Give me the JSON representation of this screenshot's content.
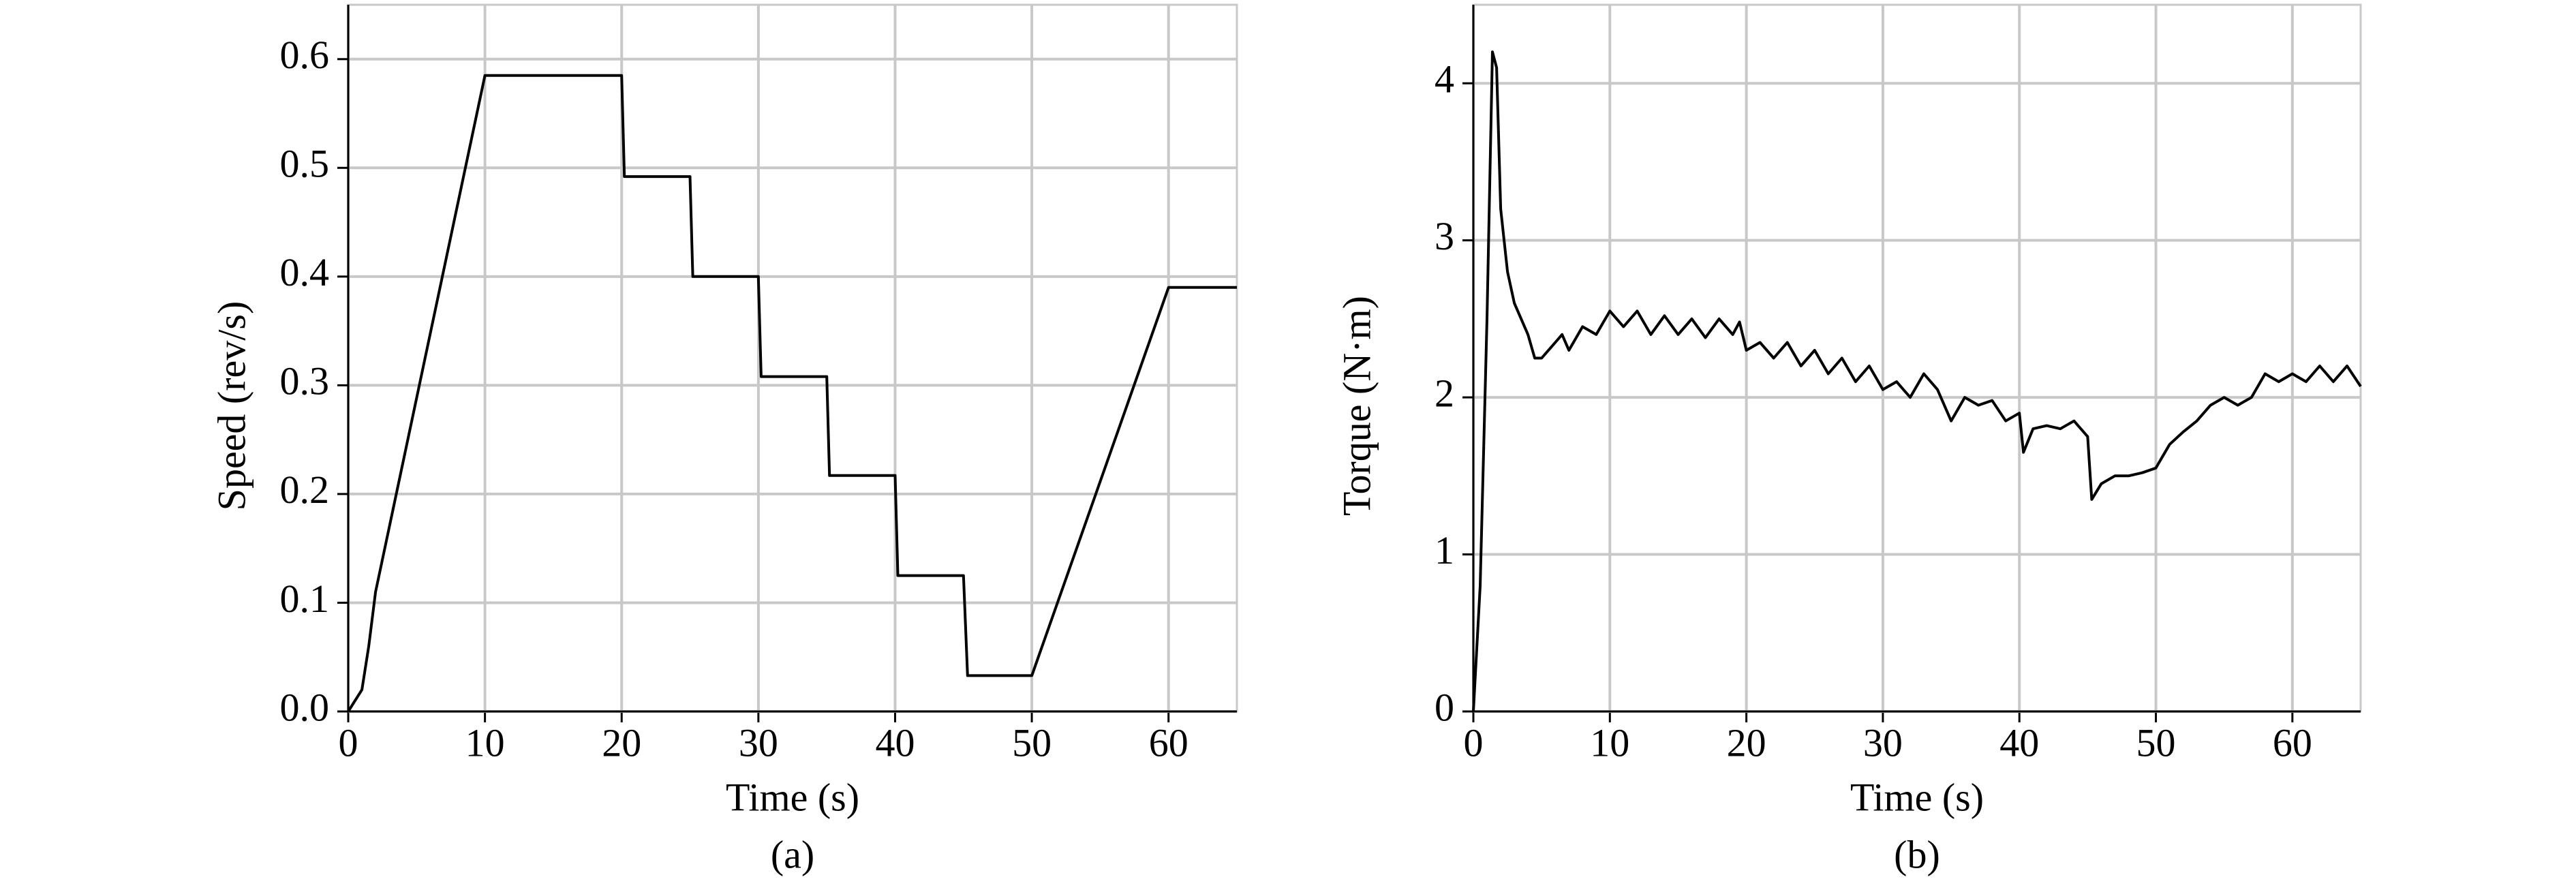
{
  "chart_data": [
    {
      "type": "line",
      "caption": "(a)",
      "x_label": "Time (s)",
      "y_label": "Speed (rev/s)",
      "xlim": [
        0,
        65
      ],
      "xticks": [
        0,
        10,
        20,
        30,
        40,
        50,
        60
      ],
      "ylim": [
        0,
        0.65
      ],
      "yticks": [
        {
          "value": 0,
          "label": "0.0"
        },
        0.1,
        0.2,
        0.3,
        0.4,
        0.5,
        0.6
      ],
      "grid": true,
      "color": "#000000",
      "x": [
        0,
        1,
        1.5,
        2,
        10,
        20,
        20.2,
        25,
        25.2,
        30,
        30.2,
        35,
        35.2,
        40,
        40.2,
        45,
        45.3,
        50,
        60,
        65
      ],
      "values": [
        0,
        0.02,
        0.06,
        0.11,
        0.585,
        0.585,
        0.492,
        0.492,
        0.4,
        0.4,
        0.308,
        0.308,
        0.217,
        0.217,
        0.125,
        0.125,
        0.033,
        0.033,
        0.39,
        0.39
      ]
    },
    {
      "type": "line",
      "caption": "(b)",
      "x_label": "Time (s)",
      "y_label": "Torque (N·m)",
      "xlim": [
        0,
        65
      ],
      "xticks": [
        0,
        10,
        20,
        30,
        40,
        50,
        60
      ],
      "ylim": [
        0,
        4.5
      ],
      "yticks": [
        0,
        1,
        2,
        3,
        4
      ],
      "grid": true,
      "color": "#000000",
      "x": [
        0,
        0.5,
        1,
        1.4,
        1.7,
        2,
        2.5,
        3,
        4,
        4.5,
        5,
        6,
        6.5,
        7,
        8,
        9,
        10,
        11,
        12,
        13,
        14,
        15,
        16,
        17,
        18,
        19,
        19.5,
        20,
        21,
        22,
        23,
        24,
        25,
        26,
        27,
        28,
        29,
        30,
        31,
        32,
        33,
        34,
        35,
        36,
        37,
        38,
        39,
        40,
        40.3,
        41,
        42,
        43,
        44,
        45,
        45.3,
        46,
        47,
        48,
        49,
        50,
        51,
        52,
        53,
        54,
        55,
        56,
        57,
        58,
        59,
        60,
        61,
        62,
        63,
        64,
        65
      ],
      "values": [
        0,
        0.8,
        2.5,
        4.2,
        4.1,
        3.2,
        2.8,
        2.6,
        2.4,
        2.25,
        2.25,
        2.35,
        2.4,
        2.3,
        2.45,
        2.4,
        2.55,
        2.45,
        2.55,
        2.4,
        2.52,
        2.4,
        2.5,
        2.38,
        2.5,
        2.4,
        2.48,
        2.3,
        2.35,
        2.25,
        2.35,
        2.2,
        2.3,
        2.15,
        2.25,
        2.1,
        2.2,
        2.05,
        2.1,
        2.0,
        2.15,
        2.05,
        1.85,
        2.0,
        1.95,
        1.98,
        1.85,
        1.9,
        1.65,
        1.8,
        1.82,
        1.8,
        1.85,
        1.75,
        1.35,
        1.45,
        1.5,
        1.5,
        1.52,
        1.55,
        1.7,
        1.78,
        1.85,
        1.95,
        2.0,
        1.95,
        2.0,
        2.15,
        2.1,
        2.15,
        2.1,
        2.2,
        2.1,
        2.2,
        2.07
      ]
    }
  ]
}
